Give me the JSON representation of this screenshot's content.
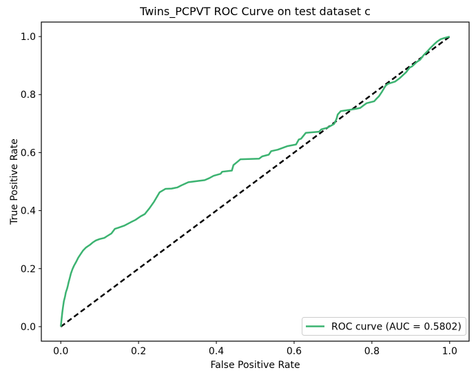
{
  "figure": {
    "title": "Twins_PCPVT ROC Curve on test dataset c",
    "xlabel": "False Positive Rate",
    "ylabel": "True Positive Rate"
  },
  "legend": {
    "roc_label": "ROC curve (AUC = 0.5802)",
    "auc_value": "0.5802",
    "position": "lower right"
  },
  "colors": {
    "roc_curve": "#3CB371",
    "chance_line": "#000000",
    "legend_border": "#cccccc",
    "background": "#ffffff"
  },
  "chart_data": {
    "type": "line",
    "title": "Twins_PCPVT ROC Curve on test dataset c",
    "xlabel": "False Positive Rate",
    "ylabel": "True Positive Rate",
    "xlim": [
      -0.05,
      1.05
    ],
    "ylim": [
      -0.05,
      1.05
    ],
    "xticks": [
      0.0,
      0.2,
      0.4,
      0.6,
      0.8,
      1.0
    ],
    "yticks": [
      0.0,
      0.2,
      0.4,
      0.6,
      0.8,
      1.0
    ],
    "grid": false,
    "legend_position": "lower right",
    "series": [
      {
        "key": "roc-curve",
        "name": "ROC curve (AUC = 0.5802)",
        "auc": 0.5802,
        "color": "#3CB371",
        "style": "solid",
        "line_width": 2.5,
        "in_legend": true,
        "x": [
          0.0,
          0.002,
          0.004,
          0.006,
          0.008,
          0.011,
          0.013,
          0.016,
          0.018,
          0.02,
          0.023,
          0.026,
          0.03,
          0.034,
          0.039,
          0.045,
          0.051,
          0.057,
          0.065,
          0.075,
          0.082,
          0.09,
          0.1,
          0.112,
          0.119,
          0.13,
          0.139,
          0.148,
          0.163,
          0.18,
          0.192,
          0.205,
          0.216,
          0.228,
          0.24,
          0.254,
          0.269,
          0.285,
          0.3,
          0.31,
          0.328,
          0.352,
          0.37,
          0.382,
          0.393,
          0.411,
          0.415,
          0.44,
          0.444,
          0.455,
          0.462,
          0.51,
          0.518,
          0.535,
          0.541,
          0.558,
          0.582,
          0.605,
          0.612,
          0.618,
          0.63,
          0.664,
          0.67,
          0.686,
          0.703,
          0.709,
          0.712,
          0.72,
          0.741,
          0.759,
          0.77,
          0.779,
          0.786,
          0.806,
          0.812,
          0.818,
          0.826,
          0.835,
          0.841,
          0.86,
          0.871,
          0.888,
          0.897,
          0.903,
          0.915,
          0.924,
          0.933,
          0.942,
          0.95,
          0.959,
          0.968,
          0.977,
          0.986,
          1.0
        ],
        "y": [
          0.0,
          0.025,
          0.05,
          0.07,
          0.088,
          0.104,
          0.118,
          0.13,
          0.14,
          0.152,
          0.167,
          0.183,
          0.198,
          0.21,
          0.222,
          0.238,
          0.25,
          0.262,
          0.273,
          0.282,
          0.29,
          0.297,
          0.302,
          0.306,
          0.312,
          0.321,
          0.337,
          0.341,
          0.348,
          0.36,
          0.368,
          0.38,
          0.388,
          0.408,
          0.431,
          0.463,
          0.475,
          0.476,
          0.48,
          0.487,
          0.498,
          0.502,
          0.505,
          0.512,
          0.52,
          0.527,
          0.534,
          0.538,
          0.557,
          0.569,
          0.577,
          0.579,
          0.587,
          0.593,
          0.605,
          0.61,
          0.622,
          0.628,
          0.645,
          0.648,
          0.668,
          0.672,
          0.68,
          0.686,
          0.699,
          0.716,
          0.731,
          0.743,
          0.747,
          0.751,
          0.754,
          0.763,
          0.77,
          0.777,
          0.786,
          0.794,
          0.81,
          0.83,
          0.837,
          0.845,
          0.856,
          0.877,
          0.893,
          0.897,
          0.912,
          0.92,
          0.936,
          0.948,
          0.96,
          0.972,
          0.983,
          0.991,
          0.995,
          1.0
        ]
      },
      {
        "key": "chance-diagonal",
        "name": "chance",
        "color": "#000000",
        "style": "dashed",
        "line_width": 2.5,
        "in_legend": false,
        "x": [
          0.0,
          1.0
        ],
        "y": [
          0.0,
          1.0
        ]
      }
    ]
  }
}
